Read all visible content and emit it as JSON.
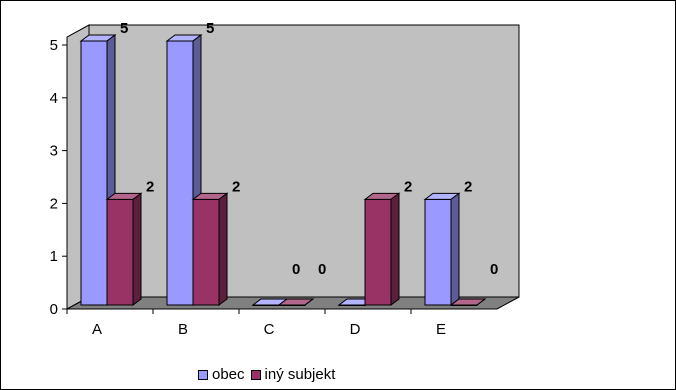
{
  "chart_data": {
    "type": "bar",
    "categories": [
      "A",
      "B",
      "C",
      "D",
      "E"
    ],
    "series": [
      {
        "name": "obec",
        "values": [
          5,
          5,
          0,
          0,
          2
        ],
        "color": "#9999FF"
      },
      {
        "name": "iný subjekt",
        "values": [
          2,
          2,
          0,
          2,
          0
        ],
        "color": "#993366"
      }
    ],
    "ylim": [
      0,
      5
    ],
    "yticks": [
      "0",
      "1",
      "2",
      "3",
      "4",
      "5"
    ],
    "grid": false,
    "legend_position": "bottom",
    "wall_color": "#C0C0C0",
    "floor_color": "#808080"
  },
  "legend": {
    "items": [
      {
        "label": "obec",
        "color": "#9999FF"
      },
      {
        "label": "iný subjekt",
        "color": "#993366"
      }
    ]
  }
}
